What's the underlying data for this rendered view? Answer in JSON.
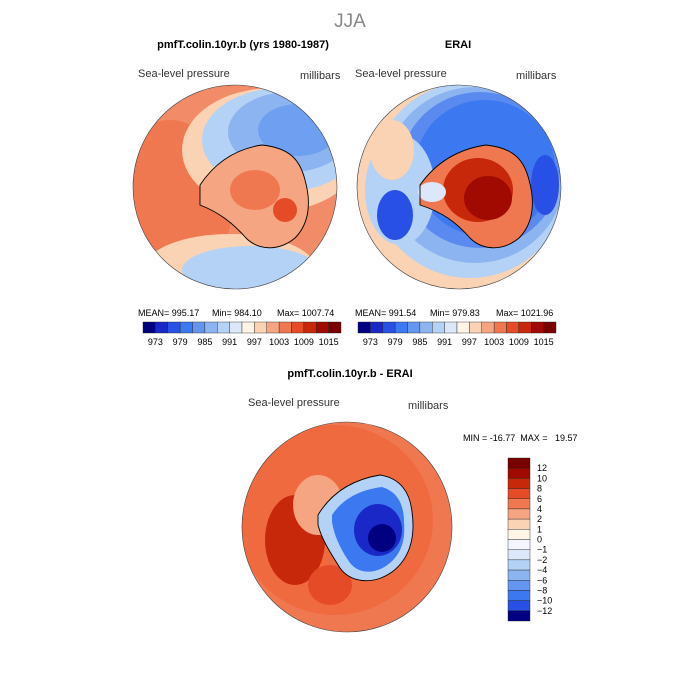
{
  "page_title": "JJA",
  "panels": {
    "model": {
      "title": "pmfT.colin.10yr.b (yrs 1980-1987)",
      "field_label": "Sea-level pressure",
      "units": "millibars",
      "stats": {
        "mean": "MEAN= 995.17",
        "min": "Min= 984.10",
        "max": "Max= 1007.74"
      }
    },
    "obs": {
      "title": "ERAI",
      "field_label": "Sea-level pressure",
      "units": "millibars",
      "stats": {
        "mean": "MEAN= 991.54",
        "min": "Min= 979.83",
        "max": "Max= 1021.96"
      }
    },
    "diff": {
      "title": "pmfT.colin.10yr.b - ERAI",
      "field_label": "Sea-level pressure",
      "units": "millibars",
      "minmax": "MIN = -16.77  MAX =   19.57"
    }
  },
  "chart_data": [
    {
      "type": "heatmap",
      "name": "model_slp",
      "title": "pmfT.colin.10yr.b (yrs 1980-1987)",
      "projection": "south-polar stereographic",
      "stats": {
        "mean": 995.17,
        "min": 984.1,
        "max": 1007.74
      },
      "contour_levels": [
        973,
        976,
        979,
        982,
        985,
        988,
        991,
        994,
        997,
        1000,
        1003,
        1006,
        1009,
        1012,
        1015
      ],
      "colorbar_tick_labels": [
        "973",
        "979",
        "985",
        "991",
        "997",
        "1003",
        "1009",
        "1015"
      ],
      "colorbar_colors": [
        "#000080",
        "#1a28c8",
        "#2850e6",
        "#3c78f0",
        "#6496f0",
        "#8cb4f0",
        "#b4d2f5",
        "#dce8fa",
        "#fff5e6",
        "#fad2b4",
        "#f5a582",
        "#f07850",
        "#e64b28",
        "#c8280a",
        "#a00a00",
        "#780000"
      ]
    },
    {
      "type": "heatmap",
      "name": "erai_slp",
      "title": "ERAI",
      "projection": "south-polar stereographic",
      "stats": {
        "mean": 991.54,
        "min": 979.83,
        "max": 1021.96
      },
      "contour_levels": [
        973,
        976,
        979,
        982,
        985,
        988,
        991,
        994,
        997,
        1000,
        1003,
        1006,
        1009,
        1012,
        1015
      ],
      "colorbar_tick_labels": [
        "973",
        "979",
        "985",
        "991",
        "997",
        "1003",
        "1009",
        "1015"
      ],
      "colorbar_colors": [
        "#000080",
        "#1a28c8",
        "#2850e6",
        "#3c78f0",
        "#6496f0",
        "#8cb4f0",
        "#b4d2f5",
        "#dce8fa",
        "#fff5e6",
        "#fad2b4",
        "#f5a582",
        "#f07850",
        "#e64b28",
        "#c8280a",
        "#a00a00",
        "#780000"
      ]
    },
    {
      "type": "heatmap",
      "name": "difference_slp",
      "title": "pmfT.colin.10yr.b - ERAI",
      "projection": "south-polar stereographic",
      "stats": {
        "min": -16.77,
        "max": 19.57
      },
      "colorbar_tick_labels": [
        "12",
        "10",
        "8",
        "6",
        "4",
        "2",
        "1",
        "0",
        "−1",
        "−2",
        "−4",
        "−6",
        "−8",
        "−10",
        "−12"
      ],
      "colorbar_colors": [
        "#780000",
        "#a00a00",
        "#c8280a",
        "#e64b28",
        "#f07850",
        "#f5a582",
        "#fad2b4",
        "#fff5e6",
        "#f5f5ff",
        "#dce8fa",
        "#b4d2f5",
        "#8cb4f0",
        "#6496f0",
        "#3c78f0",
        "#2850e6",
        "#000080"
      ]
    }
  ]
}
